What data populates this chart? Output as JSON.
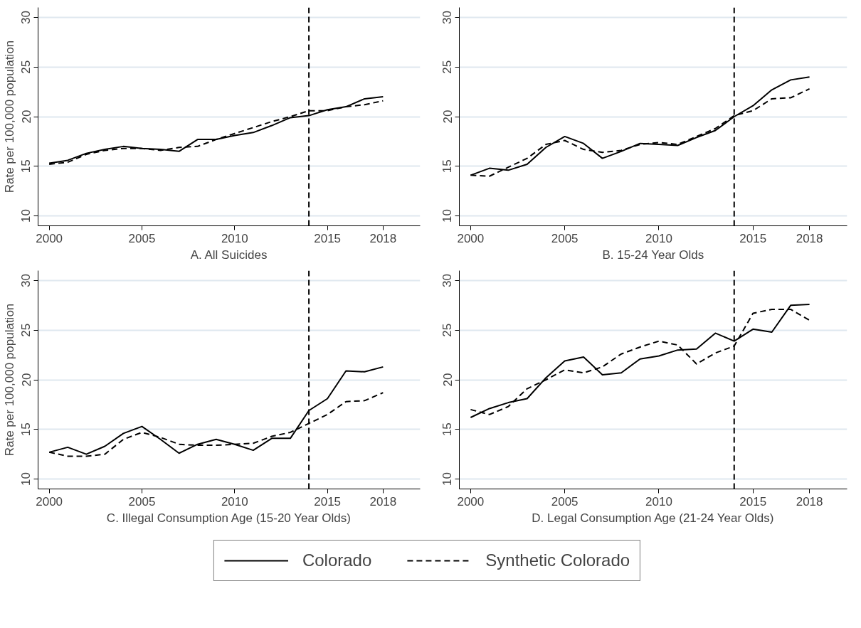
{
  "chart_data": [
    {
      "type": "line",
      "xlabel": "A. All Suicides",
      "ylabel": "Rate per 100,000 population",
      "x": [
        2000,
        2001,
        2002,
        2003,
        2004,
        2005,
        2006,
        2007,
        2008,
        2009,
        2010,
        2011,
        2012,
        2013,
        2014,
        2015,
        2016,
        2017,
        2018
      ],
      "xlim": [
        1999.4,
        2020
      ],
      "xticks": [
        2000,
        2005,
        2010,
        2015,
        2018
      ],
      "ylim": [
        9,
        31
      ],
      "yticks": [
        10,
        15,
        20,
        25,
        30
      ],
      "grid": "y",
      "legend": "bottom",
      "ref_lines": [
        {
          "axis": "x",
          "value": 2014,
          "line_style": "dashed",
          "color": "#000000"
        }
      ],
      "series": [
        {
          "name": "Colorado",
          "color": "#000000",
          "line_style": "solid",
          "values": [
            15.3,
            15.6,
            16.3,
            16.7,
            17.0,
            16.8,
            16.7,
            16.5,
            17.7,
            17.7,
            18.1,
            18.4,
            19.1,
            19.9,
            20.1,
            20.7,
            21.0,
            21.8,
            22.0
          ]
        },
        {
          "name": "Synthetic Colorado",
          "color": "#000000",
          "line_style": "dashed",
          "values": [
            15.2,
            15.4,
            16.2,
            16.6,
            16.8,
            16.8,
            16.6,
            16.9,
            17.0,
            17.7,
            18.3,
            18.9,
            19.5,
            20.0,
            20.6,
            20.6,
            21.0,
            21.2,
            21.6
          ]
        }
      ]
    },
    {
      "type": "line",
      "xlabel": "B. 15-24 Year Olds",
      "x": [
        2000,
        2001,
        2002,
        2003,
        2004,
        2005,
        2006,
        2007,
        2008,
        2009,
        2010,
        2011,
        2012,
        2013,
        2014,
        2015,
        2016,
        2017,
        2018
      ],
      "xlim": [
        1999.4,
        2020
      ],
      "xticks": [
        2000,
        2005,
        2010,
        2015,
        2018
      ],
      "ylim": [
        9,
        31
      ],
      "yticks": [
        10,
        15,
        20,
        25,
        30
      ],
      "grid": "y",
      "ref_lines": [
        {
          "axis": "x",
          "value": 2014,
          "line_style": "dashed",
          "color": "#000000"
        }
      ],
      "series": [
        {
          "color": "#000000",
          "line_style": "solid",
          "values": [
            14.1,
            14.8,
            14.6,
            15.2,
            16.9,
            18.0,
            17.3,
            15.8,
            16.5,
            17.3,
            17.2,
            17.1,
            17.9,
            18.6,
            20.0,
            21.1,
            22.7,
            23.7,
            24.0
          ]
        },
        {
          "color": "#000000",
          "line_style": "dashed",
          "values": [
            14.1,
            14.0,
            14.9,
            15.8,
            17.2,
            17.6,
            16.7,
            16.4,
            16.6,
            17.2,
            17.4,
            17.2,
            18.0,
            18.8,
            20.1,
            20.6,
            21.8,
            21.9,
            22.8
          ]
        }
      ]
    },
    {
      "type": "line",
      "xlabel": "C. Illegal Consumption Age (15-20 Year Olds)",
      "ylabel": "Rate per 100,000 population",
      "x": [
        2000,
        2001,
        2002,
        2003,
        2004,
        2005,
        2006,
        2007,
        2008,
        2009,
        2010,
        2011,
        2012,
        2013,
        2014,
        2015,
        2016,
        2017,
        2018
      ],
      "xlim": [
        1999.4,
        2020
      ],
      "xticks": [
        2000,
        2005,
        2010,
        2015,
        2018
      ],
      "ylim": [
        9,
        31
      ],
      "yticks": [
        10,
        15,
        20,
        25,
        30
      ],
      "grid": "y",
      "ref_lines": [
        {
          "axis": "x",
          "value": 2014,
          "line_style": "dashed",
          "color": "#000000"
        }
      ],
      "series": [
        {
          "color": "#000000",
          "line_style": "solid",
          "values": [
            12.7,
            13.2,
            12.5,
            13.3,
            14.6,
            15.3,
            14.0,
            12.6,
            13.5,
            14.0,
            13.5,
            12.9,
            14.1,
            14.1,
            16.9,
            18.1,
            20.9,
            20.8,
            21.3
          ]
        },
        {
          "color": "#000000",
          "line_style": "dashed",
          "values": [
            12.7,
            12.3,
            12.3,
            12.5,
            14.0,
            14.7,
            14.2,
            13.5,
            13.4,
            13.4,
            13.5,
            13.6,
            14.3,
            14.7,
            15.6,
            16.5,
            17.8,
            17.9,
            18.7
          ]
        }
      ]
    },
    {
      "type": "line",
      "xlabel": "D. Legal Consumption Age (21-24 Year Olds)",
      "x": [
        2000,
        2001,
        2002,
        2003,
        2004,
        2005,
        2006,
        2007,
        2008,
        2009,
        2010,
        2011,
        2012,
        2013,
        2014,
        2015,
        2016,
        2017,
        2018
      ],
      "xlim": [
        1999.4,
        2020
      ],
      "xticks": [
        2000,
        2005,
        2010,
        2015,
        2018
      ],
      "ylim": [
        9,
        31
      ],
      "yticks": [
        10,
        15,
        20,
        25,
        30
      ],
      "grid": "y",
      "ref_lines": [
        {
          "axis": "x",
          "value": 2014,
          "line_style": "dashed",
          "color": "#000000"
        }
      ],
      "series": [
        {
          "color": "#000000",
          "line_style": "solid",
          "values": [
            16.2,
            17.1,
            17.7,
            18.1,
            20.2,
            21.9,
            22.3,
            20.5,
            20.7,
            22.1,
            22.4,
            23.0,
            23.1,
            24.7,
            23.9,
            25.1,
            24.8,
            27.5,
            27.6
          ]
        },
        {
          "color": "#000000",
          "line_style": "dashed",
          "values": [
            17.0,
            16.5,
            17.3,
            19.1,
            20.0,
            21.0,
            20.7,
            21.3,
            22.6,
            23.3,
            23.9,
            23.5,
            21.6,
            22.7,
            23.4,
            26.7,
            27.1,
            27.1,
            26.0
          ]
        }
      ]
    }
  ]
}
